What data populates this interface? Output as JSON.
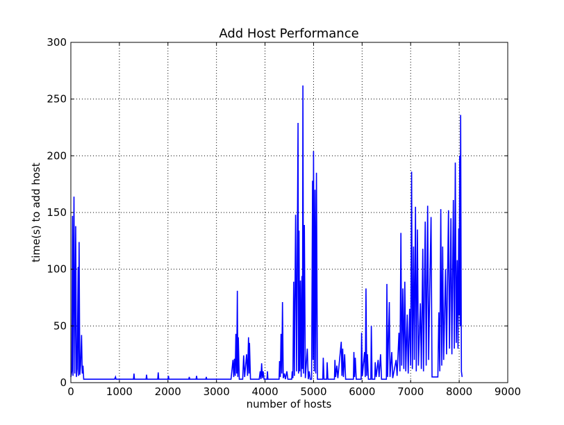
{
  "chart_data": {
    "type": "line",
    "title": "Add Host Performance",
    "xlabel": "number of hosts",
    "ylabel": "time(s) to add host",
    "xlim": [
      0,
      9000
    ],
    "ylim": [
      0,
      300
    ],
    "xticks": [
      0,
      1000,
      2000,
      3000,
      4000,
      5000,
      6000,
      7000,
      8000,
      9000
    ],
    "yticks": [
      0,
      50,
      100,
      150,
      200,
      250,
      300
    ],
    "grid": true,
    "line_color": "#0000ff",
    "series": [
      {
        "points": [
          [
            0,
            5
          ],
          [
            20,
            10
          ],
          [
            35,
            147
          ],
          [
            45,
            6
          ],
          [
            65,
            164
          ],
          [
            80,
            8
          ],
          [
            100,
            138
          ],
          [
            115,
            5
          ],
          [
            130,
            12
          ],
          [
            150,
            102
          ],
          [
            160,
            6
          ],
          [
            170,
            124
          ],
          [
            185,
            7
          ],
          [
            200,
            15
          ],
          [
            220,
            42
          ],
          [
            235,
            8
          ],
          [
            250,
            15
          ],
          [
            265,
            3
          ],
          [
            900,
            3
          ],
          [
            920,
            5
          ],
          [
            930,
            3
          ],
          [
            1290,
            3
          ],
          [
            1300,
            8
          ],
          [
            1310,
            3
          ],
          [
            1550,
            3
          ],
          [
            1560,
            7
          ],
          [
            1570,
            3
          ],
          [
            1790,
            3
          ],
          [
            1800,
            9
          ],
          [
            1810,
            3
          ],
          [
            2000,
            3
          ],
          [
            2010,
            6
          ],
          [
            2020,
            3
          ],
          [
            2430,
            3
          ],
          [
            2440,
            5
          ],
          [
            2450,
            3
          ],
          [
            2580,
            3
          ],
          [
            2590,
            6
          ],
          [
            2600,
            3
          ],
          [
            2780,
            3
          ],
          [
            2790,
            5
          ],
          [
            2800,
            3
          ],
          [
            3300,
            3
          ],
          [
            3340,
            20
          ],
          [
            3355,
            5
          ],
          [
            3370,
            21
          ],
          [
            3385,
            6
          ],
          [
            3400,
            43
          ],
          [
            3415,
            8
          ],
          [
            3430,
            81
          ],
          [
            3440,
            5
          ],
          [
            3450,
            40
          ],
          [
            3470,
            3
          ],
          [
            3540,
            3
          ],
          [
            3560,
            24
          ],
          [
            3580,
            5
          ],
          [
            3620,
            25
          ],
          [
            3640,
            6
          ],
          [
            3660,
            40
          ],
          [
            3670,
            8
          ],
          [
            3680,
            35
          ],
          [
            3700,
            3
          ],
          [
            3880,
            3
          ],
          [
            3900,
            10
          ],
          [
            3915,
            3
          ],
          [
            3930,
            17
          ],
          [
            3945,
            4
          ],
          [
            3960,
            10
          ],
          [
            3980,
            3
          ],
          [
            4040,
            3
          ],
          [
            4050,
            10
          ],
          [
            4060,
            3
          ],
          [
            4290,
            3
          ],
          [
            4300,
            19
          ],
          [
            4315,
            5
          ],
          [
            4330,
            43
          ],
          [
            4345,
            8
          ],
          [
            4360,
            71
          ],
          [
            4375,
            4
          ],
          [
            4400,
            8
          ],
          [
            4420,
            3
          ],
          [
            4450,
            10
          ],
          [
            4470,
            3
          ],
          [
            4550,
            3
          ],
          [
            4560,
            10
          ],
          [
            4575,
            4
          ],
          [
            4590,
            89
          ],
          [
            4605,
            6
          ],
          [
            4630,
            148
          ],
          [
            4650,
            10
          ],
          [
            4680,
            229
          ],
          [
            4690,
            8
          ],
          [
            4700,
            134
          ],
          [
            4715,
            10
          ],
          [
            4730,
            90
          ],
          [
            4745,
            5
          ],
          [
            4760,
            94
          ],
          [
            4770,
            12
          ],
          [
            4780,
            262
          ],
          [
            4795,
            8
          ],
          [
            4810,
            139
          ],
          [
            4830,
            4
          ],
          [
            4870,
            30
          ],
          [
            4890,
            3
          ],
          [
            4910,
            10
          ],
          [
            4930,
            3
          ],
          [
            4960,
            3
          ],
          [
            4980,
            178
          ],
          [
            4990,
            20
          ],
          [
            5000,
            204
          ],
          [
            5015,
            10
          ],
          [
            5030,
            170
          ],
          [
            5045,
            8
          ],
          [
            5060,
            185
          ],
          [
            5080,
            3
          ],
          [
            5190,
            3
          ],
          [
            5200,
            22
          ],
          [
            5215,
            3
          ],
          [
            5270,
            3
          ],
          [
            5280,
            18
          ],
          [
            5295,
            3
          ],
          [
            5430,
            3
          ],
          [
            5440,
            20
          ],
          [
            5455,
            5
          ],
          [
            5480,
            15
          ],
          [
            5500,
            4
          ],
          [
            5570,
            36
          ],
          [
            5585,
            6
          ],
          [
            5600,
            30
          ],
          [
            5615,
            5
          ],
          [
            5640,
            25
          ],
          [
            5660,
            3
          ],
          [
            5820,
            3
          ],
          [
            5830,
            27
          ],
          [
            5845,
            5
          ],
          [
            5860,
            22
          ],
          [
            5880,
            3
          ],
          [
            5980,
            3
          ],
          [
            5990,
            44
          ],
          [
            6005,
            6
          ],
          [
            6050,
            27
          ],
          [
            6065,
            5
          ],
          [
            6080,
            83
          ],
          [
            6095,
            6
          ],
          [
            6110,
            25
          ],
          [
            6130,
            3
          ],
          [
            6180,
            3
          ],
          [
            6190,
            50
          ],
          [
            6205,
            3
          ],
          [
            6260,
            3
          ],
          [
            6270,
            18
          ],
          [
            6290,
            5
          ],
          [
            6330,
            20
          ],
          [
            6350,
            5
          ],
          [
            6380,
            25
          ],
          [
            6400,
            3
          ],
          [
            6500,
            3
          ],
          [
            6510,
            87
          ],
          [
            6525,
            5
          ],
          [
            6560,
            71
          ],
          [
            6575,
            5
          ],
          [
            6610,
            27
          ],
          [
            6630,
            4
          ],
          [
            6700,
            20
          ],
          [
            6720,
            6
          ],
          [
            6760,
            44
          ],
          [
            6780,
            10
          ],
          [
            6800,
            132
          ],
          [
            6815,
            15
          ],
          [
            6840,
            83
          ],
          [
            6860,
            12
          ],
          [
            6880,
            89
          ],
          [
            6900,
            10
          ],
          [
            6930,
            60
          ],
          [
            6950,
            8
          ],
          [
            6980,
            65
          ],
          [
            7000,
            15
          ],
          [
            7020,
            186
          ],
          [
            7035,
            12
          ],
          [
            7060,
            120
          ],
          [
            7075,
            20
          ],
          [
            7100,
            155
          ],
          [
            7115,
            10
          ],
          [
            7140,
            135
          ],
          [
            7160,
            15
          ],
          [
            7200,
            70
          ],
          [
            7220,
            12
          ],
          [
            7250,
            118
          ],
          [
            7265,
            10
          ],
          [
            7300,
            142
          ],
          [
            7320,
            15
          ],
          [
            7350,
            156
          ],
          [
            7370,
            20
          ],
          [
            7400,
            100
          ],
          [
            7420,
            146
          ],
          [
            7440,
            5
          ],
          [
            7460,
            5
          ],
          [
            7520,
            5
          ],
          [
            7560,
            5
          ],
          [
            7580,
            62
          ],
          [
            7600,
            10
          ],
          [
            7620,
            153
          ],
          [
            7640,
            15
          ],
          [
            7660,
            120
          ],
          [
            7680,
            20
          ],
          [
            7720,
            100
          ],
          [
            7740,
            25
          ],
          [
            7780,
            152
          ],
          [
            7800,
            30
          ],
          [
            7830,
            145
          ],
          [
            7850,
            25
          ],
          [
            7880,
            161
          ],
          [
            7900,
            30
          ],
          [
            7920,
            194
          ],
          [
            7940,
            35
          ],
          [
            7960,
            108
          ],
          [
            7975,
            30
          ],
          [
            7990,
            136
          ],
          [
            8000,
            60
          ],
          [
            8010,
            200
          ],
          [
            8020,
            50
          ],
          [
            8030,
            236
          ],
          [
            8045,
            10
          ],
          [
            8060,
            5
          ]
        ]
      }
    ]
  }
}
